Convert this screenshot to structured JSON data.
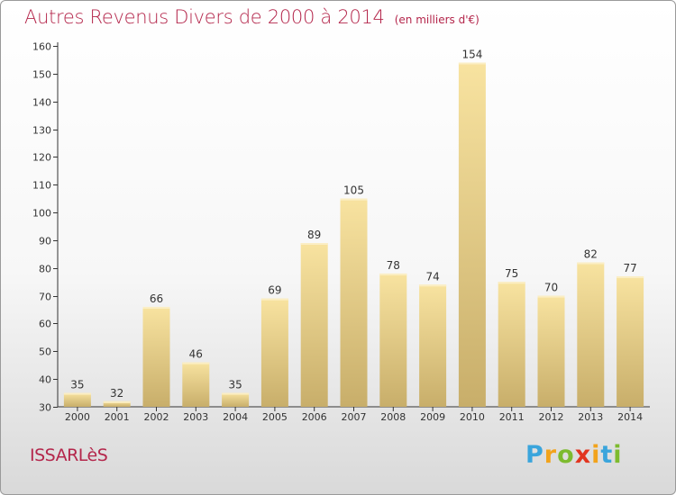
{
  "header": {
    "title": "Autres Revenus Divers de 2000 à 2014",
    "unit": "(en milliers d'€)"
  },
  "footer": {
    "commune": "ISSARLèS",
    "brand_letters": [
      "P",
      "r",
      "o",
      "x",
      "i",
      "t",
      "i"
    ],
    "brand_colors": [
      "#3aa5dc",
      "#f2a31b",
      "#7dbb2f",
      "#e2351f",
      "#f2a31b",
      "#3aa5dc",
      "#7dbb2f"
    ]
  },
  "chart_data": {
    "type": "bar",
    "title": "Autres Revenus Divers de 2000 à 2014",
    "subtitle": "(en milliers d'€)",
    "categories": [
      "2000",
      "2001",
      "2002",
      "2003",
      "2004",
      "2005",
      "2006",
      "2007",
      "2008",
      "2009",
      "2010",
      "2011",
      "2012",
      "2013",
      "2014"
    ],
    "values": [
      35,
      32,
      66,
      46,
      35,
      69,
      89,
      105,
      78,
      74,
      154,
      75,
      70,
      82,
      77
    ],
    "ylim": [
      30,
      160
    ],
    "yticks": [
      30,
      40,
      50,
      60,
      70,
      80,
      90,
      100,
      110,
      120,
      130,
      140,
      150,
      160
    ],
    "grid": false,
    "bar_color_top": "#f8e3a0",
    "bar_color_bottom": "#c8ae6a"
  }
}
